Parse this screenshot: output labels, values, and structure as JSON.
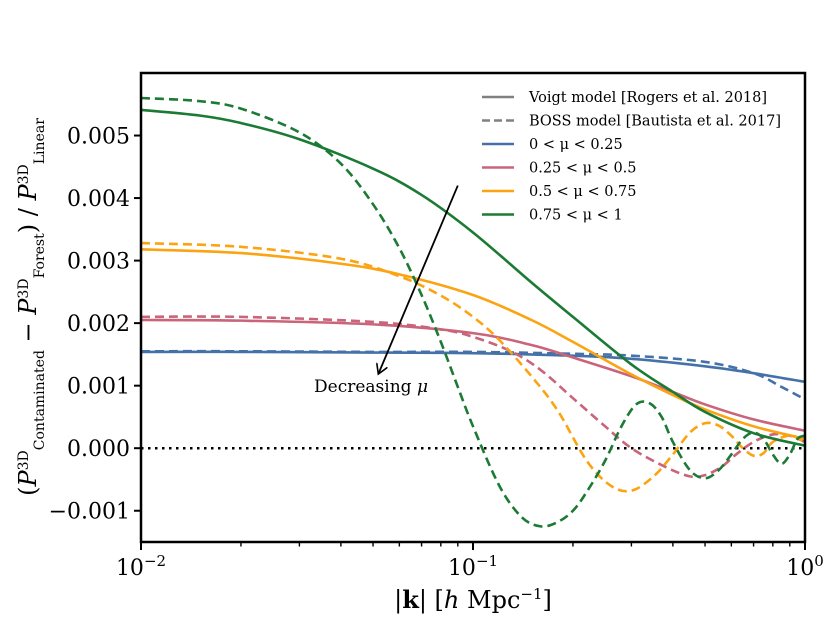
{
  "chart_data": {
    "type": "line",
    "title": "",
    "xlabel": "|k| [h Mpc⁻¹]",
    "ylabel": "(P³ᴰ Contaminated − P³ᴰ Forest) / P³ᴰ Linear",
    "xscale": "log",
    "xlim": [
      0.01,
      1.0
    ],
    "ylim": [
      -0.0015,
      0.006
    ],
    "x_ticks": [
      0.01,
      0.1,
      1.0
    ],
    "x_tick_labels": [
      "10−2",
      "10−1",
      "100"
    ],
    "y_ticks": [
      -0.001,
      0.0,
      0.001,
      0.002,
      0.003,
      0.004,
      0.005
    ],
    "y_tick_labels": [
      "−0.001",
      "0.000",
      "0.001",
      "0.002",
      "0.003",
      "0.004",
      "0.005"
    ],
    "zero_line": {
      "y": 0.0,
      "style": "dotted",
      "color": "#000000"
    },
    "annotation": {
      "text": "Decreasing μ",
      "arrow_from": [
        0.09,
        0.0042
      ],
      "arrow_to": [
        0.052,
        0.0012
      ]
    },
    "legend": {
      "location": "upper right",
      "entries": [
        {
          "label": "Voigt model [Rogers et al. 2018]",
          "color": "#808080",
          "style": "solid"
        },
        {
          "label": "BOSS model [Bautista et al. 2017]",
          "color": "#808080",
          "style": "dashed"
        },
        {
          "label": "0 < μ < 0.25",
          "color": "#4472a8",
          "style": "solid"
        },
        {
          "label": "0.25 < μ < 0.5",
          "color": "#c9647a",
          "style": "solid"
        },
        {
          "label": "0.5 < μ < 0.75",
          "color": "#fca311",
          "style": "solid"
        },
        {
          "label": "0.75 < μ < 1",
          "color": "#1b7a33",
          "style": "solid"
        }
      ]
    },
    "series": [
      {
        "name": "0 < μ < 0.25 (Voigt)",
        "model": "Voigt",
        "color": "#4472a8",
        "style": "solid",
        "x": [
          0.01,
          0.02,
          0.05,
          0.1,
          0.2,
          0.3,
          0.5,
          0.7,
          1.0
        ],
        "y": [
          0.00154,
          0.00154,
          0.00153,
          0.00152,
          0.00148,
          0.00143,
          0.00131,
          0.0012,
          0.00106
        ]
      },
      {
        "name": "0 < μ < 0.25 (BOSS)",
        "model": "BOSS",
        "color": "#4472a8",
        "style": "dashed",
        "x": [
          0.01,
          0.02,
          0.05,
          0.1,
          0.2,
          0.3,
          0.5,
          0.7,
          0.85,
          1.0
        ],
        "y": [
          0.00155,
          0.00155,
          0.00154,
          0.00154,
          0.00151,
          0.00148,
          0.00138,
          0.0012,
          0.00098,
          0.00078
        ]
      },
      {
        "name": "0.25 < μ < 0.5 (Voigt)",
        "model": "Voigt",
        "color": "#c9647a",
        "style": "solid",
        "x": [
          0.01,
          0.02,
          0.05,
          0.1,
          0.15,
          0.2,
          0.3,
          0.4,
          0.5,
          0.7,
          1.0
        ],
        "y": [
          0.00205,
          0.00204,
          0.00198,
          0.00184,
          0.00165,
          0.00145,
          0.00115,
          0.0009,
          0.0007,
          0.00046,
          0.00028
        ]
      },
      {
        "name": "0.25 < μ < 0.5 (BOSS)",
        "model": "BOSS",
        "color": "#c9647a",
        "style": "dashed",
        "x": [
          0.01,
          0.02,
          0.05,
          0.08,
          0.1,
          0.13,
          0.16,
          0.2,
          0.25,
          0.3,
          0.38,
          0.45,
          0.5,
          0.56,
          0.62,
          0.7,
          0.8,
          0.9,
          1.0
        ],
        "y": [
          0.0021,
          0.0021,
          0.00202,
          0.0019,
          0.00178,
          0.00155,
          0.00125,
          0.0008,
          0.00035,
          0.0,
          -0.0003,
          -0.00045,
          -0.00043,
          -0.0003,
          -0.0001,
          0.0001,
          0.00022,
          0.0002,
          0.0001
        ]
      },
      {
        "name": "0.5 < μ < 0.75 (Voigt)",
        "model": "Voigt",
        "color": "#fca311",
        "style": "solid",
        "x": [
          0.01,
          0.02,
          0.04,
          0.06,
          0.1,
          0.15,
          0.2,
          0.3,
          0.4,
          0.5,
          0.7,
          1.0
        ],
        "y": [
          0.00318,
          0.00312,
          0.00295,
          0.00278,
          0.00245,
          0.00205,
          0.0017,
          0.00118,
          0.00085,
          0.00062,
          0.00035,
          0.00015
        ]
      },
      {
        "name": "0.5 < μ < 0.75 (BOSS)",
        "model": "BOSS",
        "color": "#fca311",
        "style": "dashed",
        "x": [
          0.01,
          0.02,
          0.04,
          0.06,
          0.08,
          0.1,
          0.12,
          0.15,
          0.18,
          0.22,
          0.26,
          0.3,
          0.35,
          0.4,
          0.45,
          0.5,
          0.55,
          0.6,
          0.65,
          0.7,
          0.75,
          0.8,
          0.9,
          1.0
        ],
        "y": [
          0.00328,
          0.00322,
          0.00303,
          0.00275,
          0.00244,
          0.0021,
          0.00173,
          0.00115,
          0.0006,
          -0.0002,
          -0.0006,
          -0.00068,
          -0.00045,
          -0.0001,
          0.00025,
          0.0004,
          0.00036,
          0.0002,
          0.0,
          -0.00012,
          -8e-05,
          0.0001,
          0.0002,
          0.0001
        ]
      },
      {
        "name": "0.75 < μ < 1 (Voigt)",
        "model": "Voigt",
        "color": "#1b7a33",
        "style": "solid",
        "x": [
          0.01,
          0.015,
          0.02,
          0.03,
          0.05,
          0.07,
          0.1,
          0.15,
          0.2,
          0.3,
          0.4,
          0.5,
          0.7,
          1.0
        ],
        "y": [
          0.00541,
          0.00532,
          0.0052,
          0.00494,
          0.00447,
          0.00405,
          0.00345,
          0.00265,
          0.0021,
          0.00134,
          0.0009,
          0.00058,
          0.00024,
          4e-05
        ]
      },
      {
        "name": "0.75 < μ < 1 (BOSS)",
        "model": "BOSS",
        "color": "#1b7a33",
        "style": "dashed",
        "x": [
          0.01,
          0.015,
          0.02,
          0.03,
          0.04,
          0.05,
          0.06,
          0.07,
          0.08,
          0.09,
          0.1,
          0.12,
          0.14,
          0.16,
          0.18,
          0.2,
          0.22,
          0.25,
          0.28,
          0.31,
          0.34,
          0.37,
          0.4,
          0.45,
          0.5,
          0.55,
          0.6,
          0.65,
          0.7,
          0.75,
          0.8,
          0.85,
          0.9,
          0.95,
          1.0
        ],
        "y": [
          0.0056,
          0.00555,
          0.00543,
          0.00505,
          0.00455,
          0.0039,
          0.0032,
          0.00245,
          0.0017,
          0.00098,
          0.00035,
          -0.0006,
          -0.0011,
          -0.00125,
          -0.00118,
          -0.001,
          -0.0007,
          -0.0002,
          0.00035,
          0.0007,
          0.00072,
          0.0005,
          0.0001,
          -0.00035,
          -0.00048,
          -0.00035,
          -0.0001,
          0.00015,
          0.00025,
          0.00015,
          -0.0001,
          -0.00025,
          -0.0001,
          0.00015,
          0.0002
        ]
      }
    ]
  }
}
